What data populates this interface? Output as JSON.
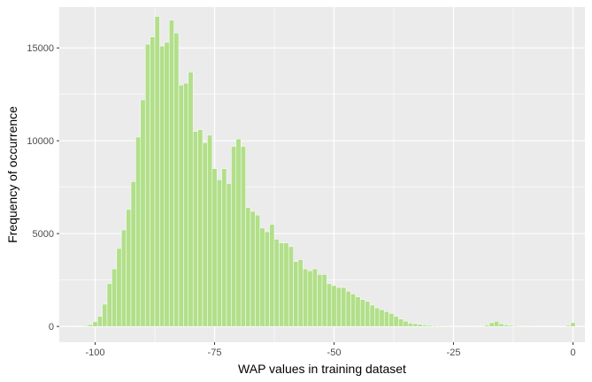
{
  "colors": {
    "panel": "#ebebeb",
    "grid_major": "#ffffff",
    "bar_fill": "#b2df8a",
    "bar_outline": "#ffffff",
    "tick_text": "#4d4d4d"
  },
  "chart_data": {
    "type": "bar",
    "title": "",
    "xlabel": "WAP values in training dataset",
    "ylabel": "Frequency of occurrence",
    "xlim": [
      -107.5,
      2.5
    ],
    "ylim": [
      -850,
      17200
    ],
    "x_ticks": [
      -100,
      -75,
      -50,
      -25,
      0
    ],
    "x_tick_labels": [
      "-100",
      "-75",
      "-50",
      "-25",
      "0"
    ],
    "y_ticks": [
      0,
      5000,
      10000,
      15000
    ],
    "y_tick_labels": [
      "0",
      "5000",
      "10000",
      "15000"
    ],
    "grid": true,
    "legend": "none",
    "bin_width": 1,
    "x": [
      -104,
      -103,
      -102,
      -101,
      -100,
      -99,
      -98,
      -97,
      -96,
      -95,
      -94,
      -93,
      -92,
      -91,
      -90,
      -89,
      -88,
      -87,
      -86,
      -85,
      -84,
      -83,
      -82,
      -81,
      -80,
      -79,
      -78,
      -77,
      -76,
      -75,
      -74,
      -73,
      -72,
      -71,
      -70,
      -69,
      -68,
      -67,
      -66,
      -65,
      -64,
      -63,
      -62,
      -61,
      -60,
      -59,
      -58,
      -57,
      -56,
      -55,
      -54,
      -53,
      -52,
      -51,
      -50,
      -49,
      -48,
      -47,
      -46,
      -45,
      -44,
      -43,
      -42,
      -41,
      -40,
      -39,
      -38,
      -37,
      -36,
      -35,
      -34,
      -33,
      -32,
      -31,
      -30,
      -29,
      -28,
      -27,
      -26,
      -25,
      -24,
      -23,
      -22,
      -21,
      -20,
      -19,
      -18,
      -17,
      -16,
      -15,
      -14,
      -13,
      -12,
      -11,
      -10,
      -9,
      -8,
      -7,
      -6,
      -5,
      -4,
      -3,
      -2,
      -1,
      0
    ],
    "values": [
      5,
      10,
      40,
      100,
      250,
      550,
      1200,
      2300,
      3100,
      4200,
      5200,
      6300,
      7800,
      10200,
      12200,
      15200,
      15600,
      16700,
      15100,
      15300,
      16500,
      15800,
      13000,
      13100,
      13700,
      10500,
      10600,
      9900,
      10300,
      8500,
      7900,
      8500,
      7700,
      9700,
      10100,
      9700,
      6400,
      6200,
      6000,
      5300,
      5100,
      5500,
      4700,
      4500,
      4500,
      4300,
      3500,
      3600,
      3100,
      3000,
      3100,
      2800,
      2800,
      2300,
      2200,
      2100,
      2100,
      1900,
      1750,
      1600,
      1450,
      1350,
      1150,
      1000,
      900,
      800,
      700,
      550,
      400,
      280,
      180,
      150,
      120,
      80,
      60,
      50,
      40,
      35,
      30,
      25,
      20,
      20,
      15,
      15,
      20,
      30,
      80,
      200,
      280,
      140,
      90,
      60,
      40,
      30,
      20,
      15,
      10,
      8,
      6,
      5,
      5,
      5,
      10,
      60,
      200
    ]
  }
}
